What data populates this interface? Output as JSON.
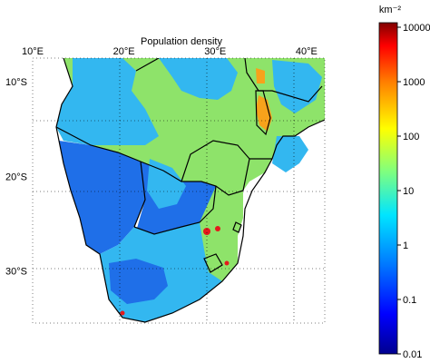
{
  "title": "Population density",
  "x_ticks": [
    {
      "lon": 10,
      "label": "10°E"
    },
    {
      "lon": 20,
      "label": "20°E"
    },
    {
      "lon": 30,
      "label": "30°E"
    },
    {
      "lon": 40,
      "label": "40°E"
    }
  ],
  "y_ticks": [
    {
      "lat": -10,
      "label": "10°S"
    },
    {
      "lat": -20,
      "label": "20°S"
    },
    {
      "lat": -30,
      "label": "30°S"
    }
  ],
  "map_extent": {
    "lon": [
      10,
      42
    ],
    "lat": [
      -35.5,
      -7.5
    ]
  },
  "colorbar": {
    "unit_label": "km⁻²",
    "tick_labels": [
      "10000",
      "1000",
      "100",
      "10",
      "1",
      "0.1",
      "0.01"
    ],
    "colors": [
      "#00008f",
      "#0000ff",
      "#0080ff",
      "#00e5ff",
      "#7fff7f",
      "#ffff00",
      "#ff8000",
      "#ff0000",
      "#800000"
    ]
  },
  "colors": {
    "ocean": "#ffffff",
    "low": "#1f6fe8",
    "medium": "#33b7f0",
    "green": "#8ee36a",
    "orange": "#f7a21b",
    "red": "#e41a1c",
    "border": "#000000"
  }
}
